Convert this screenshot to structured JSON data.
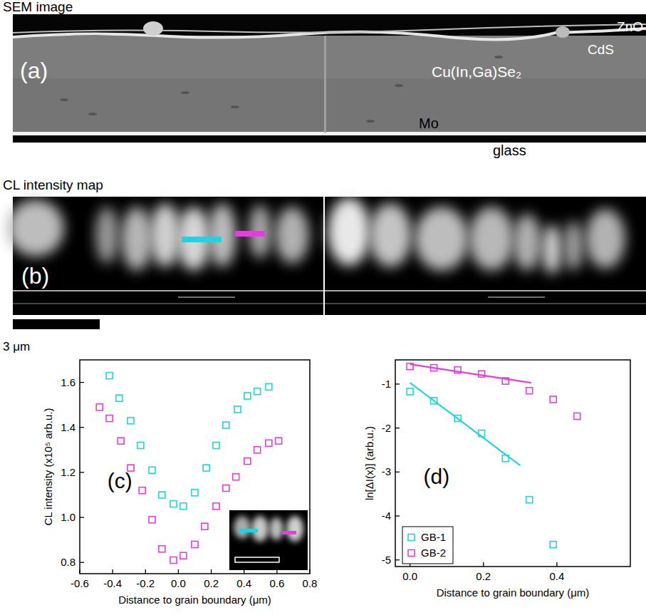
{
  "panels": {
    "a": {
      "heading": "SEM image",
      "label": "(a)",
      "layers": [
        "ZnO",
        "CdS",
        "Cu(In,Ga)Se₂",
        "Mo",
        "glass"
      ]
    },
    "b": {
      "heading": "CL intensity map",
      "label": "(b)"
    },
    "scale_bar": "3 μm"
  },
  "chart_data": [
    {
      "type": "scatter",
      "panel_label": "(c)",
      "x_label": "Distance to grain boundary (μm)",
      "y_label": "CL intensity (x10⁵ arb.u.)",
      "xlim": [
        -0.6,
        0.8
      ],
      "xticks": [
        -0.6,
        -0.4,
        -0.2,
        {
          "value": 0,
          "label": "0.0"
        },
        0.2,
        0.4,
        0.6,
        0.8
      ],
      "ylim": [
        0.75,
        1.7
      ],
      "yticks": [
        0.8,
        {
          "value": 1,
          "label": "1.0"
        },
        1.2,
        1.4,
        1.6
      ],
      "grid": false,
      "series": [
        {
          "color": "#22d3dd",
          "marker": "square",
          "x": [
            -0.42,
            -0.36,
            -0.29,
            -0.23,
            -0.16,
            -0.1,
            -0.03,
            0.03,
            0.1,
            0.17,
            0.23,
            0.29,
            0.36,
            0.42,
            0.48,
            0.55
          ],
          "values": [
            1.63,
            1.53,
            1.43,
            1.32,
            1.21,
            1.1,
            1.06,
            1.05,
            1.11,
            1.22,
            1.32,
            1.41,
            1.48,
            1.54,
            1.56,
            1.58
          ]
        },
        {
          "color": "#e23ee0",
          "marker": "square",
          "x": [
            -0.48,
            -0.42,
            -0.35,
            -0.29,
            -0.22,
            -0.16,
            -0.1,
            -0.03,
            0.03,
            0.1,
            0.16,
            0.23,
            0.29,
            0.35,
            0.42,
            0.48,
            0.55,
            0.61
          ],
          "values": [
            1.49,
            1.44,
            1.34,
            1.22,
            1.12,
            0.99,
            0.86,
            0.81,
            0.83,
            0.88,
            0.96,
            1.05,
            1.13,
            1.18,
            1.25,
            1.3,
            1.33,
            1.34
          ]
        }
      ]
    },
    {
      "type": "scatter",
      "panel_label": "(d)",
      "x_label": "Distance to grain boundary (μm)",
      "y_label": "ln[ΔI(x)] (arb.u.)",
      "xlim": [
        -0.04,
        0.6
      ],
      "xticks": [
        {
          "value": 0,
          "label": "0.0"
        },
        0.2,
        0.4
      ],
      "ylim": [
        -5.15,
        -0.45
      ],
      "yticks": [
        -1,
        -2,
        -3,
        -4,
        -5
      ],
      "grid": false,
      "legend": "lower left",
      "series": [
        {
          "name": "GB-1",
          "color": "#22d3dd",
          "marker": "square",
          "x": [
            0,
            0.065,
            0.13,
            0.195,
            0.26,
            0.325,
            0.39
          ],
          "values": [
            -1.17,
            -1.38,
            -1.78,
            -2.12,
            -2.69,
            -3.63,
            -4.65
          ]
        },
        {
          "name": "GB-2",
          "color": "#e23ee0",
          "marker": "square",
          "x": [
            0,
            0.065,
            0.13,
            0.195,
            0.26,
            0.325,
            0.39,
            0.455
          ],
          "values": [
            -0.6,
            -0.63,
            -0.68,
            -0.77,
            -0.93,
            -1.15,
            -1.35,
            -1.73
          ]
        },
        {
          "type": "line",
          "color": "#22d3dd",
          "x": [
            0,
            0.3
          ],
          "values": [
            -0.97,
            -2.85
          ]
        },
        {
          "type": "line",
          "color": "#e23ee0",
          "x": [
            0,
            0.33
          ],
          "values": [
            -0.55,
            -0.97
          ]
        }
      ]
    }
  ]
}
